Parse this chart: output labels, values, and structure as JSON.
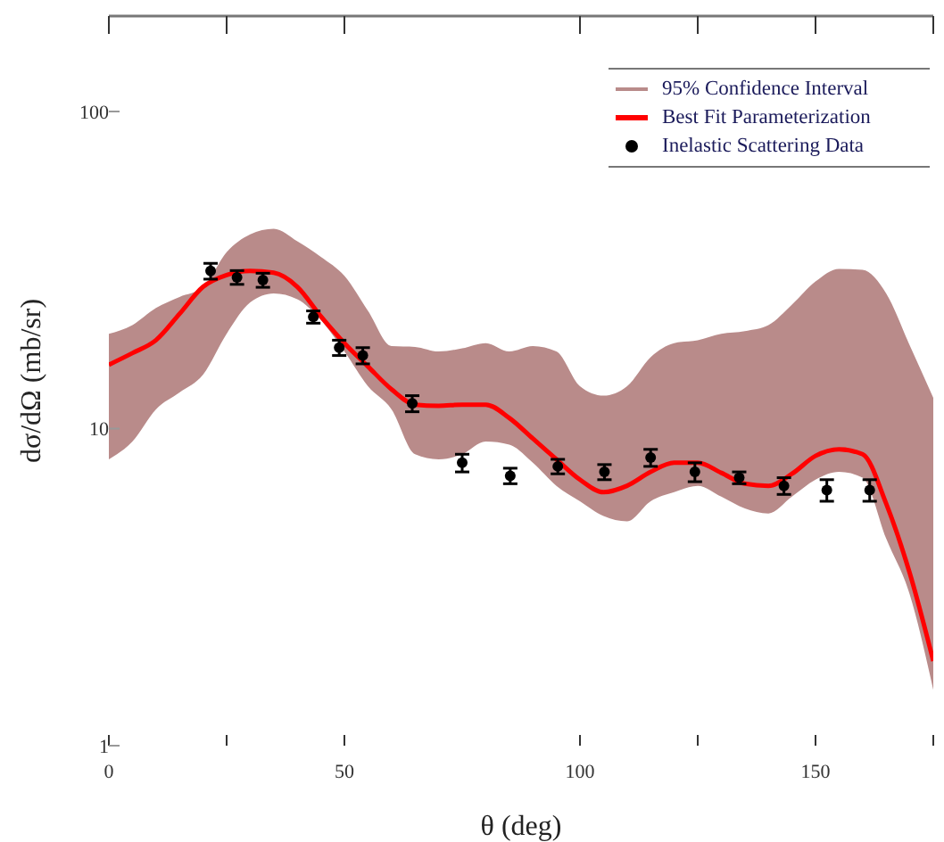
{
  "chart_data": {
    "type": "line",
    "xlabel": "θ (deg)",
    "ylabel": "dσ/dΩ (mb/sr)",
    "log": "y",
    "xlim": [
      0,
      175
    ],
    "ylim": [
      1,
      200
    ],
    "xticks": [
      0,
      {
        "value": 25,
        "label": null
      },
      50,
      100,
      {
        "value": 125,
        "label": null
      },
      150,
      {
        "value": 175,
        "label": null
      }
    ],
    "yticks": [
      1,
      10,
      100
    ],
    "legend": "top right",
    "marker": "circle",
    "series": [
      {
        "name": "95% Confidence Interval",
        "type": "area",
        "color": "#b98b8a"
      },
      {
        "name": "Best Fit Parameterization",
        "color": "#ff0000",
        "marker": "none",
        "x": [
          0,
          5,
          10,
          15,
          20,
          25,
          30,
          35,
          40,
          45,
          50,
          55,
          60,
          65,
          70,
          75,
          80,
          85,
          90,
          95,
          100,
          105,
          110,
          115,
          120,
          125,
          130,
          135,
          140,
          145,
          150,
          155,
          160,
          165,
          170,
          175
        ],
        "values": [
          15.9,
          17.3,
          19,
          23,
          28,
          30.5,
          31.4,
          31,
          28,
          22.6,
          18.6,
          15.7,
          13.3,
          11.9,
          11.8,
          11.9,
          11.9,
          10.8,
          9.3,
          8.0,
          6.9,
          6.3,
          6.6,
          7.3,
          7.8,
          7.8,
          7.25,
          6.7,
          6.6,
          7.2,
          8.2,
          8.6,
          8.3,
          5.8,
          3.5,
          1.85
        ],
        "lower": [
          8.0,
          9.1,
          11.5,
          13,
          14.8,
          19.9,
          25,
          26.7,
          25.6,
          22,
          17.5,
          13.6,
          11.5,
          8.3,
          8.0,
          8.3,
          9.1,
          8.9,
          7.8,
          6.6,
          5.9,
          5.3,
          5.1,
          5.9,
          6.3,
          6.6,
          6.1,
          5.6,
          5.4,
          6.1,
          6.9,
          7.3,
          7.0,
          4.5,
          3.0,
          1.5
        ],
        "upper": [
          19.9,
          21.2,
          24,
          26,
          27.9,
          36,
          41,
          42.7,
          39,
          34.8,
          30.3,
          23.5,
          18.2,
          18.1,
          17.5,
          17.9,
          18.6,
          17.5,
          18.2,
          17.5,
          13.6,
          12.7,
          13.6,
          16.8,
          18.6,
          19.0,
          19.9,
          20.3,
          21.2,
          24.6,
          29.1,
          31.9,
          31.7,
          26.7,
          18.3,
          12.5
        ]
      },
      {
        "name": "Inelastic Scattering Data",
        "type": "scatter",
        "color": "#000000",
        "x": [
          21.6,
          27.2,
          32.7,
          43.4,
          48.9,
          53.9,
          64.4,
          75,
          85.2,
          95.3,
          105.2,
          115,
          124.4,
          133.8,
          143.3,
          152.4,
          161.5
        ],
        "values": [
          31.4,
          30,
          29.4,
          22.5,
          18,
          17,
          12,
          7.8,
          7.1,
          7.6,
          7.3,
          8.1,
          7.3,
          7.0,
          6.6,
          6.4,
          6.4
        ],
        "errors": [
          1.8,
          1.5,
          1.5,
          1,
          1,
          1,
          0.7,
          0.5,
          0.4,
          0.4,
          0.4,
          0.5,
          0.5,
          0.3,
          0.4,
          0.5,
          0.5
        ]
      }
    ]
  }
}
